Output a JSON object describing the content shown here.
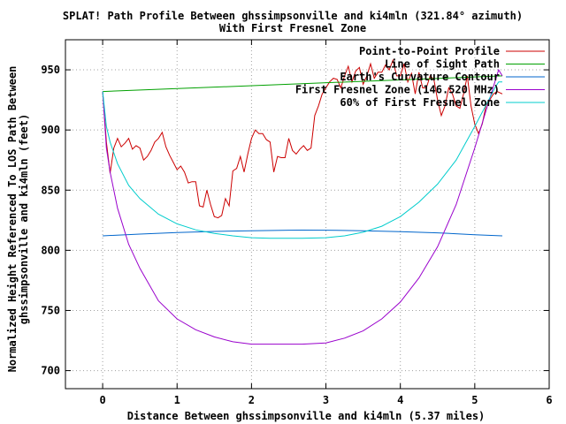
{
  "chart_data": {
    "type": "line",
    "title": "SPLAT! Path Profile Between ghssimpsonville and ki4mln (321.84° azimuth)",
    "subtitle": "With First Fresnel Zone",
    "xlabel": "Distance Between ghssimpsonville and ki4mln (5.37 miles)",
    "ylabel_line1": "Normalized Height Referenced To LOS Path Between",
    "ylabel_line2": "ghssimpsonville and ki4mln (feet)",
    "xlim": [
      -0.5,
      6
    ],
    "ylim": [
      685,
      975
    ],
    "x_ticks": [
      0,
      1,
      2,
      3,
      4,
      5,
      6
    ],
    "y_ticks": [
      700,
      750,
      800,
      850,
      900,
      950
    ],
    "grid": true,
    "legend_position": "top-right",
    "series": [
      {
        "name": "Point-to-Point Profile",
        "color": "#cc0000",
        "x": [
          0,
          0.05,
          0.1,
          0.15,
          0.2,
          0.25,
          0.3,
          0.35,
          0.4,
          0.45,
          0.5,
          0.55,
          0.6,
          0.65,
          0.7,
          0.75,
          0.8,
          0.85,
          0.9,
          0.95,
          1.0,
          1.05,
          1.1,
          1.15,
          1.2,
          1.25,
          1.3,
          1.35,
          1.4,
          1.45,
          1.5,
          1.55,
          1.6,
          1.65,
          1.7,
          1.75,
          1.8,
          1.85,
          1.9,
          1.95,
          2.0,
          2.05,
          2.1,
          2.15,
          2.2,
          2.25,
          2.3,
          2.35,
          2.4,
          2.45,
          2.5,
          2.55,
          2.6,
          2.65,
          2.7,
          2.75,
          2.8,
          2.85,
          2.9,
          2.95,
          3.0,
          3.05,
          3.1,
          3.15,
          3.2,
          3.25,
          3.3,
          3.35,
          3.4,
          3.45,
          3.5,
          3.55,
          3.6,
          3.65,
          3.7,
          3.75,
          3.8,
          3.85,
          3.9,
          3.95,
          4.0,
          4.05,
          4.1,
          4.15,
          4.2,
          4.25,
          4.3,
          4.35,
          4.4,
          4.45,
          4.5,
          4.55,
          4.6,
          4.65,
          4.7,
          4.75,
          4.8,
          4.85,
          4.9,
          4.95,
          5.0,
          5.05,
          5.1,
          5.15,
          5.2,
          5.25,
          5.3,
          5.37
        ],
        "values": [
          932,
          890,
          864,
          885,
          893,
          886,
          889,
          893,
          884,
          887,
          885,
          875,
          878,
          883,
          890,
          893,
          898,
          886,
          879,
          873,
          867,
          870,
          865,
          856,
          857,
          857,
          837,
          836,
          850,
          838,
          828,
          827,
          829,
          843,
          837,
          866,
          868,
          878,
          865,
          880,
          893,
          900,
          897,
          897,
          892,
          890,
          865,
          878,
          877,
          877,
          893,
          883,
          880,
          884,
          887,
          883,
          885,
          912,
          920,
          930,
          935,
          940,
          943,
          942,
          935,
          945,
          953,
          940,
          949,
          952,
          938,
          945,
          955,
          943,
          948,
          948,
          954,
          950,
          958,
          945,
          945,
          955,
          940,
          947,
          930,
          948,
          935,
          935,
          945,
          942,
          925,
          912,
          920,
          935,
          930,
          920,
          918,
          930,
          945,
          920,
          905,
          897,
          905,
          920,
          925,
          930,
          932,
          930
        ]
      },
      {
        "name": "Line of Sight Path",
        "color": "#00a000",
        "x": [
          0,
          5.37
        ],
        "values": [
          932,
          945
        ]
      },
      {
        "name": "Earth's Curvature Contour",
        "color": "#0066cc",
        "x": [
          0,
          0.5,
          1.0,
          1.5,
          2.0,
          2.5,
          2.68,
          3.0,
          3.5,
          4.0,
          4.5,
          5.0,
          5.37
        ],
        "values": [
          812,
          813.5,
          814.7,
          815.7,
          816.3,
          816.7,
          816.8,
          816.7,
          816.3,
          815.5,
          814.5,
          813,
          812
        ]
      },
      {
        "name": "First Fresnel Zone (146.520 MHz)",
        "color": "#9900cc",
        "x": [
          0,
          0.05,
          0.1,
          0.2,
          0.35,
          0.5,
          0.75,
          1.0,
          1.25,
          1.5,
          1.75,
          2.0,
          2.25,
          2.5,
          2.68,
          3.0,
          3.25,
          3.5,
          3.75,
          4.0,
          4.25,
          4.5,
          4.75,
          5.0,
          5.17,
          5.27,
          5.32,
          5.37
        ],
        "values": [
          932,
          885,
          865,
          835,
          805,
          785,
          758,
          743,
          734,
          728,
          724,
          722,
          722,
          722,
          722,
          723,
          727,
          733,
          743,
          757,
          777,
          803,
          838,
          885,
          920,
          940,
          950,
          945
        ]
      },
      {
        "name": "60% of First Fresnel Zone",
        "color": "#00cccc",
        "x": [
          0,
          0.05,
          0.1,
          0.2,
          0.35,
          0.5,
          0.75,
          1.0,
          1.25,
          1.5,
          1.75,
          2.0,
          2.25,
          2.5,
          2.68,
          3.0,
          3.25,
          3.5,
          3.75,
          4.0,
          4.25,
          4.5,
          4.75,
          5.0,
          5.17,
          5.27,
          5.32,
          5.37
        ],
        "values": [
          932,
          903,
          890,
          872,
          854,
          843,
          830,
          822,
          817,
          814,
          812,
          810.5,
          810,
          810,
          810,
          810.5,
          812,
          815,
          820,
          828,
          840,
          855,
          875,
          903,
          923,
          935,
          940,
          940
        ]
      }
    ]
  }
}
